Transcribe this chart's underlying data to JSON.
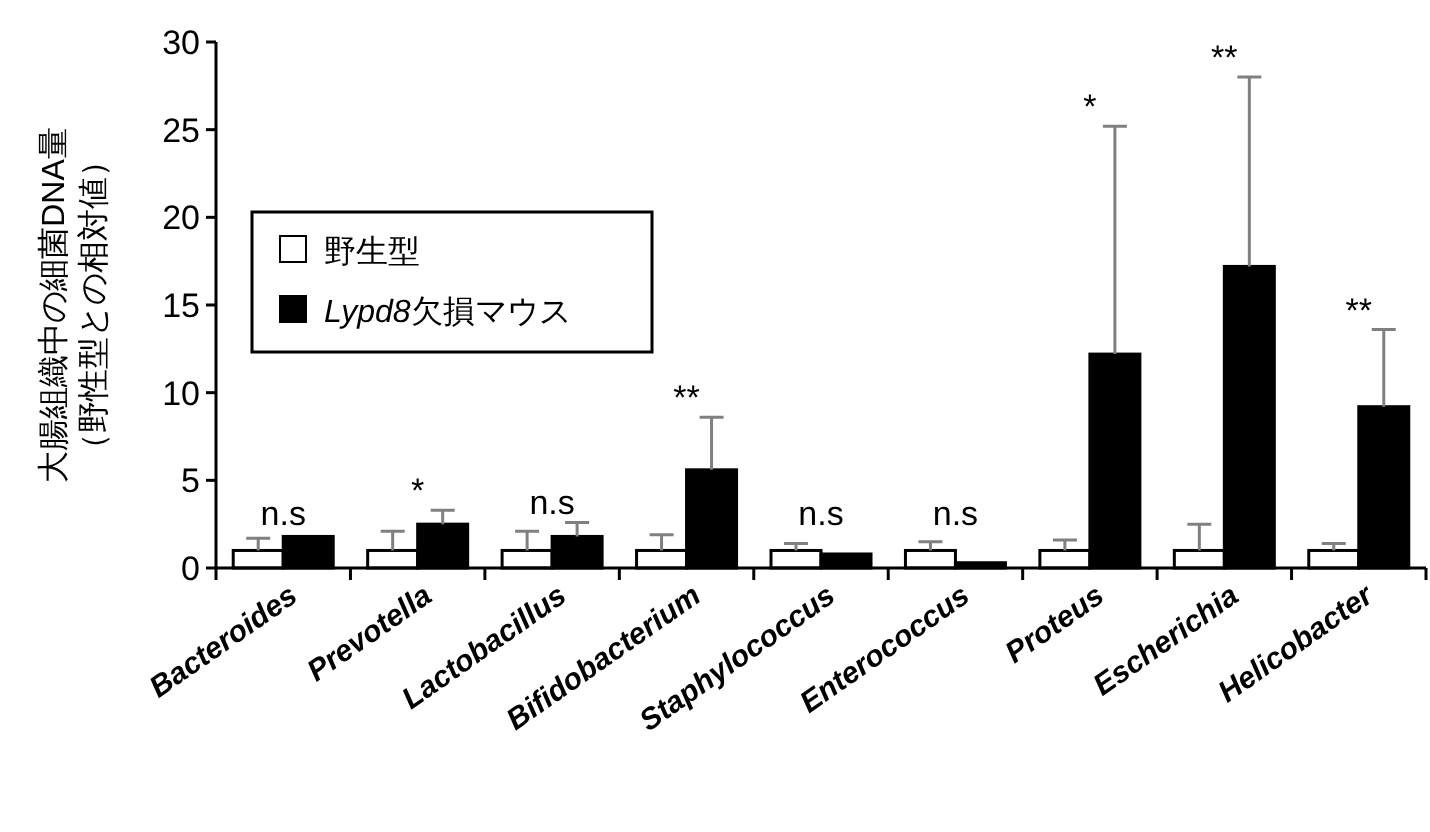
{
  "chart_data": {
    "type": "bar",
    "ylabel": "大腸組織中の細菌DNA量（野性型との相対値）",
    "categories": [
      "Bacteroides",
      "Prevotella",
      "Lactobacillus",
      "Bifidobacterium",
      "Staphylococcus",
      "Enterococcus",
      "Proteus",
      "Escherichia",
      "Helicobacter"
    ],
    "series": [
      {
        "name": "野生型",
        "color": "#ffffff",
        "values": [
          1,
          1,
          1,
          1,
          1,
          1,
          1,
          1,
          1
        ],
        "errors": [
          0.7,
          1.1,
          1.1,
          0.9,
          0.4,
          0.5,
          0.6,
          1.5,
          0.4
        ]
      },
      {
        "name": "Lypd8欠損マウス",
        "color": "#000000",
        "values": [
          1.8,
          2.5,
          1.8,
          5.6,
          0.8,
          0.3,
          12.2,
          17.2,
          9.2
        ],
        "errors": [
          null,
          0.8,
          0.8,
          3.0,
          null,
          null,
          13.0,
          10.8,
          4.4
        ]
      }
    ],
    "ylim": [
      0,
      30
    ],
    "yticks": [
      0,
      5,
      10,
      15,
      20,
      25,
      30
    ],
    "grid": false,
    "legend": "left",
    "annotations": [
      {
        "text": "n.s",
        "x": "Bacteroides",
        "y": 1.8
      },
      {
        "text": "*",
        "x": "Prevotella",
        "y": 3.3
      },
      {
        "text": "n.s",
        "x": "Lactobacillus",
        "y": 2.6
      },
      {
        "text": "**",
        "x": "Bifidobacterium",
        "y": 8.6
      },
      {
        "text": "n.s",
        "x": "Staphylococcus",
        "y": 0.8
      },
      {
        "text": "n.s",
        "x": "Enterococcus",
        "y": 0.3
      },
      {
        "text": "*",
        "x": "Proteus",
        "y": 25.2
      },
      {
        "text": "**",
        "x": "Escherichia",
        "y": 28.0
      },
      {
        "text": "**",
        "x": "Helicobacter",
        "y": 13.6
      }
    ]
  }
}
